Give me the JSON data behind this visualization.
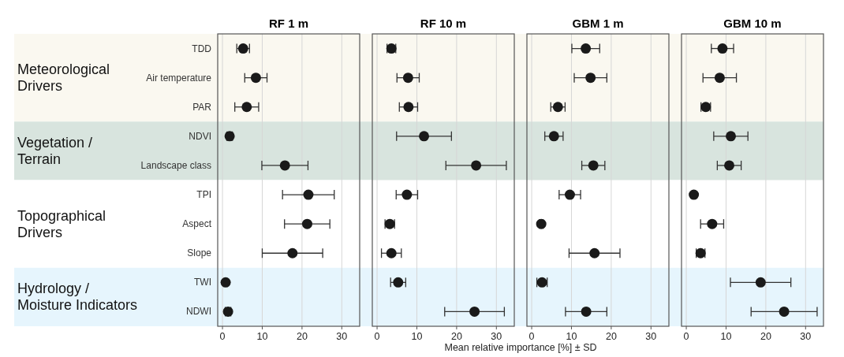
{
  "chart_data": [
    {
      "type": "scatter",
      "title": "RF 1 m",
      "orientation": "horizontal",
      "marker": "circle",
      "grid": "x",
      "color": "#1a1a1a",
      "categories": [
        "TDD",
        "Air temperature",
        "PAR",
        "NDVI",
        "Landscape class",
        "TPI",
        "Aspect",
        "Slope",
        "TWI",
        "NDWI"
      ],
      "values": [
        5.2,
        8.4,
        6.1,
        1.8,
        15.7,
        21.6,
        21.3,
        17.6,
        0.8,
        1.4
      ],
      "errors": [
        1.6,
        2.8,
        3,
        0.7,
        5.8,
        6.5,
        5.7,
        7.6,
        null,
        0.7
      ],
      "xlim": [
        -1.2,
        34.5
      ],
      "xticks": [
        0,
        10,
        20,
        30
      ],
      "bands": [
        {
          "axis": "y",
          "from": "TDD",
          "to": "PAR",
          "label": "Meteorological Drivers",
          "color": "#faf8f0"
        },
        {
          "axis": "y",
          "from": "NDVI",
          "to": "Landscape class",
          "label": "Vegetation / Terrain",
          "color": "#d8e4de"
        },
        {
          "axis": "y",
          "from": "TPI",
          "to": "Slope",
          "label": "Topographical Drivers",
          "color": "#ffffff"
        },
        {
          "axis": "y",
          "from": "TWI",
          "to": "NDWI",
          "label": "Hydrology / Moisture Indicators",
          "color": "#e6f5fd"
        }
      ]
    },
    {
      "type": "scatter",
      "title": "RF 10 m",
      "orientation": "horizontal",
      "marker": "circle",
      "grid": "x",
      "tick_labels": "x",
      "color": "#1a1a1a",
      "xlabel": "Mean relative importance [%] ± SD",
      "categories": [
        "TDD",
        "Air temperature",
        "PAR",
        "NDVI",
        "Landscape class",
        "TPI",
        "Aspect",
        "Slope",
        "TWI",
        "NDWI"
      ],
      "values": [
        3.6,
        7.8,
        7.9,
        11.8,
        24.9,
        7.5,
        3.2,
        3.6,
        5.3,
        24.5
      ],
      "errors": [
        1.1,
        2.8,
        2.3,
        6.9,
        7.6,
        2.7,
        1.2,
        2.5,
        1.9,
        7.5
      ],
      "xlim": [
        -1.2,
        34.5
      ],
      "xticks": [
        0,
        10,
        20,
        30
      ],
      "bands": [
        {
          "axis": "y",
          "from": "TDD",
          "to": "PAR",
          "color": "#faf8f0"
        },
        {
          "axis": "y",
          "from": "NDVI",
          "to": "Landscape class",
          "color": "#d8e4de"
        },
        {
          "axis": "y",
          "from": "TWI",
          "to": "NDWI",
          "color": "#e6f5fd"
        }
      ]
    },
    {
      "type": "scatter",
      "title": "GBM 1 m",
      "orientation": "horizontal",
      "marker": "circle",
      "grid": "x",
      "tick_labels": "x",
      "color": "#1a1a1a",
      "categories": [
        "TDD",
        "Air temperature",
        "PAR",
        "NDVI",
        "Landscape class",
        "TPI",
        "Aspect",
        "Slope",
        "TWI",
        "NDWI"
      ],
      "values": [
        13.6,
        14.8,
        6.6,
        5.6,
        15.5,
        9.6,
        2.4,
        15.8,
        2.6,
        13.7
      ],
      "errors": [
        3.5,
        4.1,
        1.8,
        2.3,
        2.9,
        2.7,
        0.5,
        6.4,
        1.3,
        5.2
      ],
      "xlim": [
        -1.2,
        34.5
      ],
      "xticks": [
        0,
        10,
        20,
        30
      ],
      "bands": [
        {
          "axis": "y",
          "from": "TDD",
          "to": "PAR",
          "color": "#faf8f0"
        },
        {
          "axis": "y",
          "from": "NDVI",
          "to": "Landscape class",
          "color": "#d8e4de"
        },
        {
          "axis": "y",
          "from": "TWI",
          "to": "NDWI",
          "color": "#e6f5fd"
        }
      ]
    },
    {
      "type": "scatter",
      "title": "GBM 10 m",
      "orientation": "horizontal",
      "marker": "circle",
      "grid": "x",
      "tick_labels": "x",
      "color": "#1a1a1a",
      "categories": [
        "TDD",
        "Air temperature",
        "PAR",
        "NDVI",
        "Landscape class",
        "TPI",
        "Aspect",
        "Slope",
        "TWI",
        "NDWI"
      ],
      "values": [
        9.1,
        8.4,
        4.9,
        11.2,
        10.8,
        1.9,
        6.5,
        3.6,
        18.7,
        24.6
      ],
      "errors": [
        2.8,
        4.2,
        1.2,
        4.3,
        3.0,
        null,
        2.9,
        1.1,
        7.6,
        8.3
      ],
      "xlim": [
        -1.2,
        34.5
      ],
      "xticks": [
        0,
        10,
        20,
        30
      ],
      "bands": [
        {
          "axis": "y",
          "from": "TDD",
          "to": "PAR",
          "color": "#faf8f0"
        },
        {
          "axis": "y",
          "from": "NDVI",
          "to": "Landscape class",
          "color": "#d8e4de"
        },
        {
          "axis": "y",
          "from": "TWI",
          "to": "NDWI",
          "color": "#e6f5fd"
        }
      ]
    }
  ]
}
